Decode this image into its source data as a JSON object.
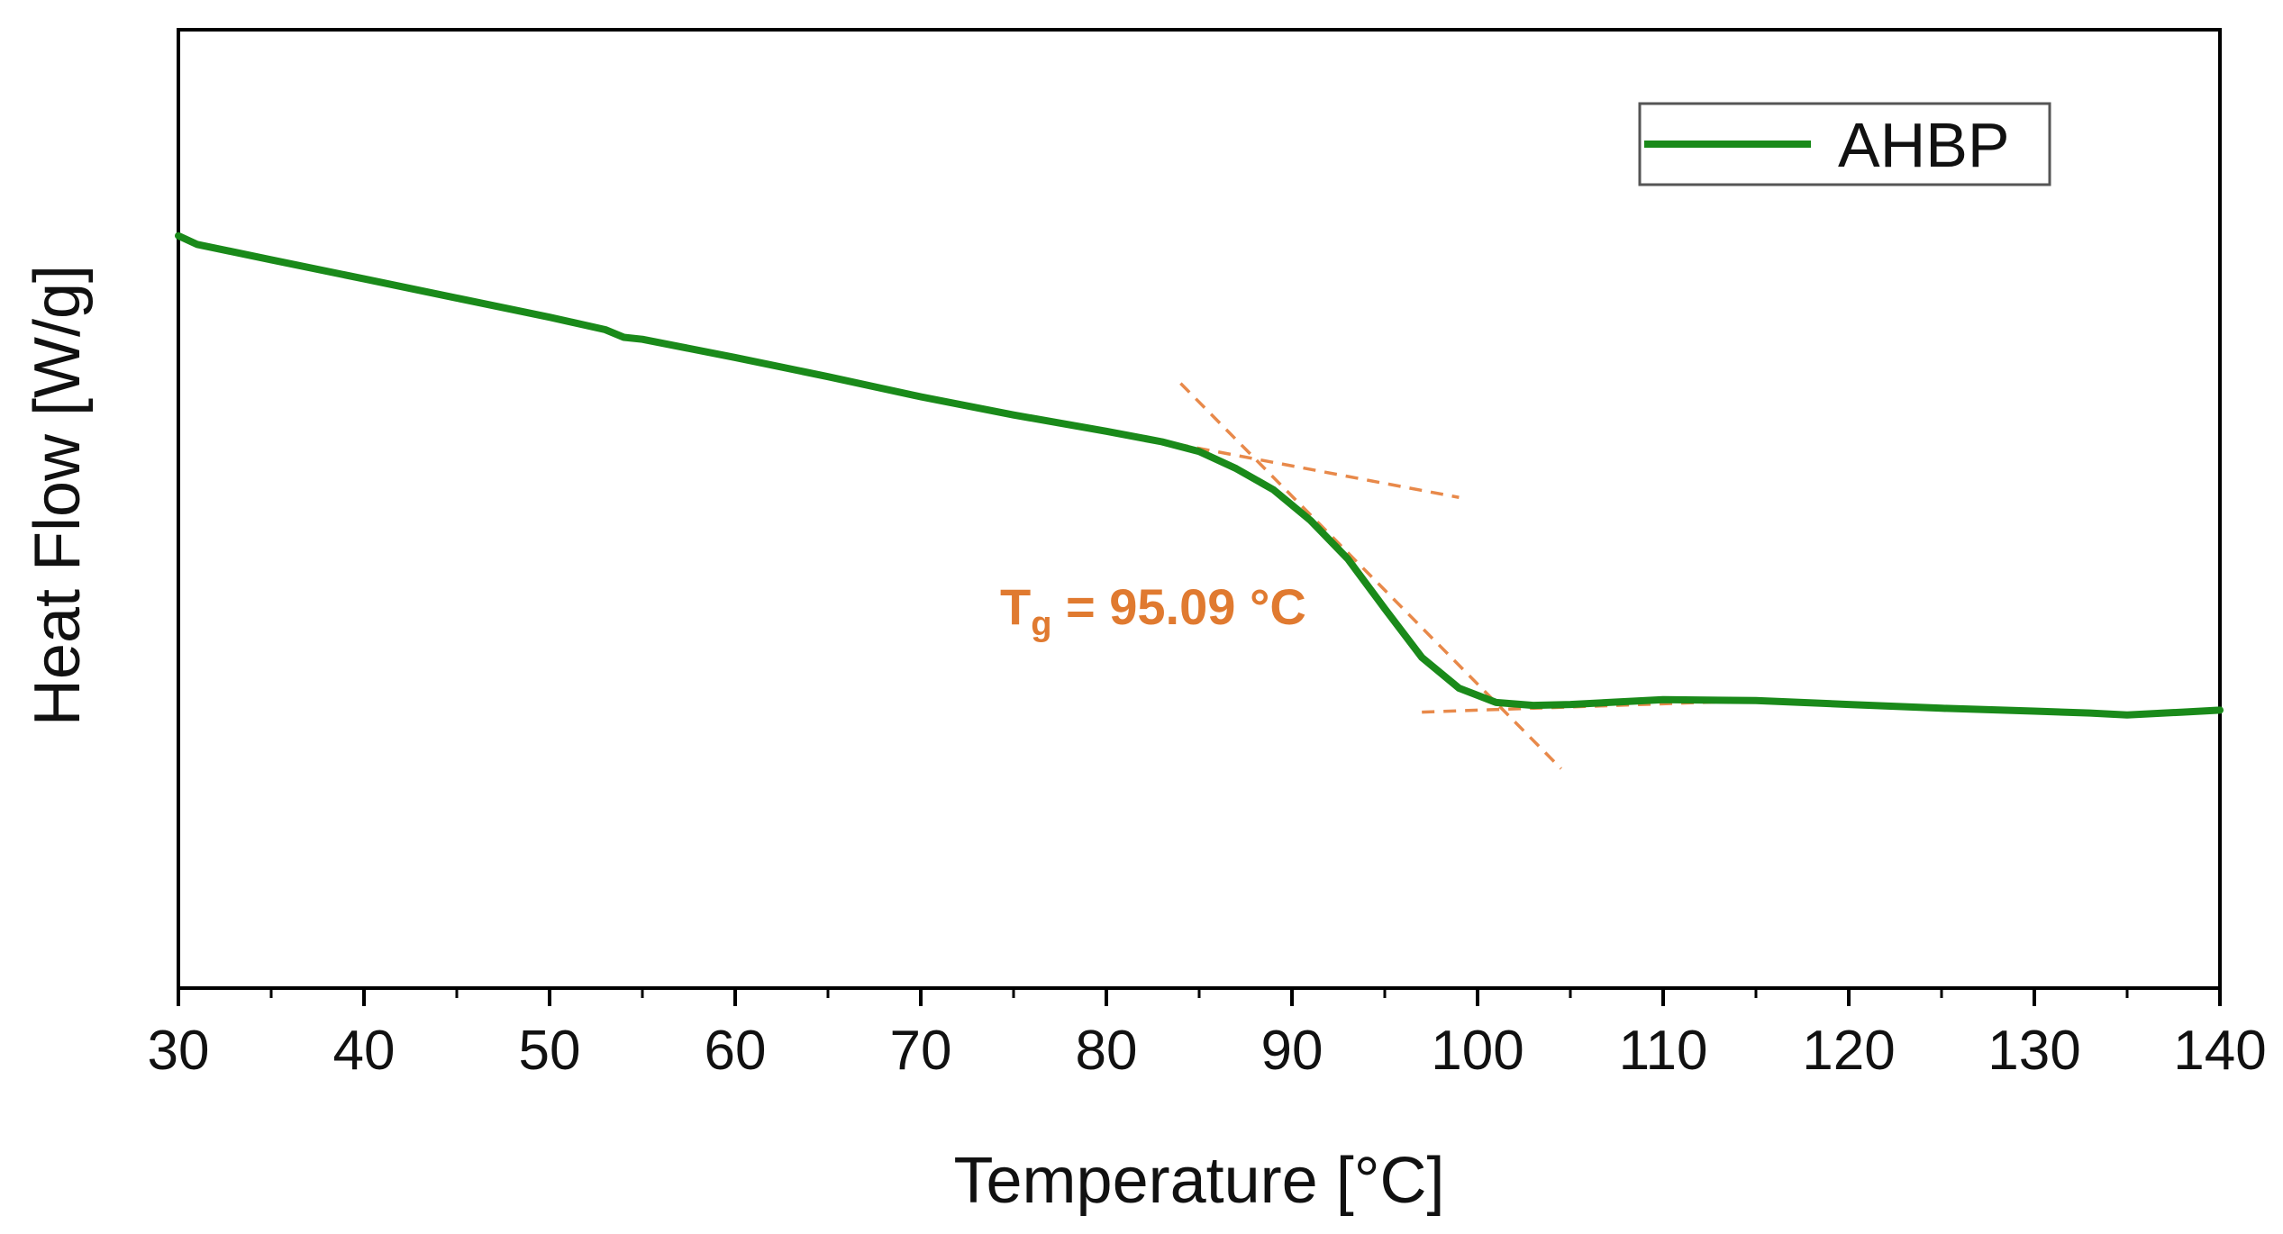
{
  "chart_data": {
    "type": "line",
    "title": "",
    "xlabel": "Temperature [°C]",
    "ylabel": "Heat Flow [W/g]",
    "xlim": [
      30,
      140
    ],
    "ylim": [
      0,
      100
    ],
    "x_ticks": [
      30,
      40,
      50,
      60,
      70,
      80,
      90,
      100,
      110,
      120,
      130,
      140
    ],
    "x_tick_labels": [
      "30",
      "40",
      "50",
      "60",
      "70",
      "80",
      "90",
      "100",
      "110",
      "120",
      "130",
      "140"
    ],
    "y_ticks_shown": false,
    "grid": false,
    "legend_position": "top-right",
    "series": [
      {
        "name": "AHBP",
        "color": "#1a8a1a",
        "points": [
          [
            30,
            78.5
          ],
          [
            31,
            77.6
          ],
          [
            35,
            76.0
          ],
          [
            40,
            74.0
          ],
          [
            45,
            72.0
          ],
          [
            50,
            70.0
          ],
          [
            53,
            68.7
          ],
          [
            54,
            67.9
          ],
          [
            55,
            67.7
          ],
          [
            60,
            65.8
          ],
          [
            65,
            63.8
          ],
          [
            70,
            61.7
          ],
          [
            75,
            59.8
          ],
          [
            80,
            58.1
          ],
          [
            83,
            57.0
          ],
          [
            85,
            56.0
          ],
          [
            87,
            54.2
          ],
          [
            89,
            52.0
          ],
          [
            91,
            48.8
          ],
          [
            93,
            44.8
          ],
          [
            95,
            39.6
          ],
          [
            97,
            34.5
          ],
          [
            99,
            31.3
          ],
          [
            101,
            29.8
          ],
          [
            103,
            29.5
          ],
          [
            105,
            29.6
          ],
          [
            110,
            30.1
          ],
          [
            115,
            30.0
          ],
          [
            120,
            29.6
          ],
          [
            125,
            29.2
          ],
          [
            130,
            28.9
          ],
          [
            133,
            28.7
          ],
          [
            135,
            28.5
          ],
          [
            138,
            28.8
          ],
          [
            140,
            29.0
          ]
        ]
      }
    ],
    "tangents": [
      {
        "name": "pre-transition baseline",
        "from": [
          70,
          61.8
        ],
        "to": [
          99,
          51.2
        ]
      },
      {
        "name": "inflection tangent",
        "from": [
          84,
          63.1
        ],
        "to": [
          104.5,
          22.9
        ]
      },
      {
        "name": "post-transition baseline",
        "from": [
          97,
          28.8
        ],
        "to": [
          115,
          30.0
        ]
      }
    ],
    "annotation": {
      "label_main": "T",
      "label_sub": "g",
      "label_rest": " = 95.09 °C",
      "value_c": 95.09,
      "color": "#e07a30"
    }
  },
  "colors": {
    "series": "#1a8a1a",
    "tangent": "#e8894a",
    "annotation": "#e07a30",
    "axis": "#000000"
  }
}
